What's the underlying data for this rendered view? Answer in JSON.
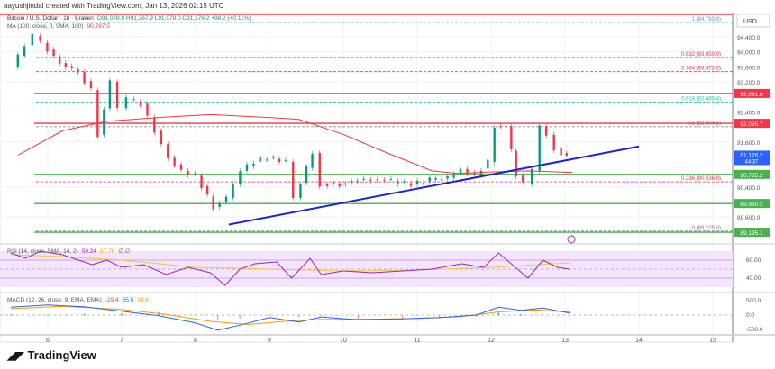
{
  "header": {
    "credit": "aayushjindal created with TradingView.com, Jan 13, 2026 02:15 UTC",
    "symbol": "Bitcoin / U.S. Dollar · 1h · Kraken",
    "ohlc": "O91,078.0 H91,267.9 L91,078.0 C91,176.2 +98.2 (+0.11%)",
    "ma": "MA (100, close, 0, SMA, 100)",
    "ma_value": "90,787.5"
  },
  "currency": "USD",
  "logo": "TradingView",
  "colors": {
    "up": "#089981",
    "down": "#f23645",
    "ma": "#f23645",
    "trend": "#1e22d6",
    "support": "#4caf50",
    "rsi": "#9c27b0",
    "macd": "#2962ff",
    "signal": "#ff9800"
  },
  "chart_data": {
    "type": "candlestick",
    "x_ticks": [
      "6",
      "7",
      "8",
      "9",
      "10",
      "11",
      "12",
      "13",
      "14",
      "15"
    ],
    "y_ticks": [
      "94,400.0",
      "94,000.0",
      "93,600.0",
      "93,200.0",
      "92,400.0",
      "91,600.0",
      "90,400.0",
      "89,600.0"
    ],
    "y_tick_values": [
      94400,
      94000,
      93600,
      93200,
      92400,
      91600,
      90400,
      89600
    ],
    "price": [
      [
        5.55,
        93600
      ],
      [
        5.73,
        94180
      ],
      [
        5.85,
        94420
      ],
      [
        6.04,
        94060
      ],
      [
        6.2,
        93700
      ],
      [
        6.45,
        93460
      ],
      [
        6.63,
        92980
      ],
      [
        6.72,
        91790
      ],
      [
        6.88,
        93200
      ],
      [
        7.0,
        92500
      ],
      [
        7.12,
        92740
      ],
      [
        7.3,
        92620
      ],
      [
        7.49,
        91900
      ],
      [
        7.67,
        91180
      ],
      [
        7.85,
        90830
      ],
      [
        8.04,
        90700
      ],
      [
        8.28,
        89870
      ],
      [
        8.46,
        90110
      ],
      [
        8.65,
        90830
      ],
      [
        8.83,
        91070
      ],
      [
        9.01,
        91190
      ],
      [
        9.26,
        91070
      ],
      [
        9.38,
        90110
      ],
      [
        9.62,
        91310
      ],
      [
        9.74,
        90470
      ],
      [
        9.99,
        90470
      ],
      [
        10.23,
        90590
      ],
      [
        10.6,
        90590
      ],
      [
        10.96,
        90470
      ],
      [
        11.21,
        90590
      ],
      [
        11.45,
        90640
      ],
      [
        11.63,
        90880
      ],
      [
        11.82,
        90710
      ],
      [
        12.0,
        91070
      ],
      [
        12.09,
        92020
      ],
      [
        12.24,
        92020
      ],
      [
        12.37,
        90710
      ],
      [
        12.49,
        90470
      ],
      [
        12.61,
        90830
      ],
      [
        12.7,
        92020
      ],
      [
        12.79,
        91790
      ],
      [
        12.91,
        91430
      ],
      [
        13.06,
        91176
      ]
    ],
    "ma100": [
      [
        5.6,
        91250
      ],
      [
        6.2,
        91900
      ],
      [
        6.8,
        92150
      ],
      [
        7.5,
        92250
      ],
      [
        8.2,
        92330
      ],
      [
        9.0,
        92250
      ],
      [
        9.4,
        92200
      ],
      [
        10.0,
        91800
      ],
      [
        10.6,
        91300
      ],
      [
        11.2,
        90830
      ],
      [
        11.55,
        90760
      ],
      [
        12.0,
        90800
      ],
      [
        12.5,
        90830
      ],
      [
        13.1,
        90787
      ]
    ],
    "trendline": [
      [
        8.45,
        89400
      ],
      [
        14.0,
        91480
      ]
    ],
    "levels": [
      {
        "value": 92891.8,
        "label": "92,891.8",
        "color": "#f23645"
      },
      {
        "value": 92095.7,
        "label": "92,095.7",
        "color": "#f23645"
      },
      {
        "value": 90735.2,
        "label": "90,735.2",
        "color": "#4caf50"
      },
      {
        "value": 89960.2,
        "label": "89,960.2",
        "color": "#4caf50"
      },
      {
        "value": 89195.1,
        "label": "89,195.1",
        "color": "#4caf50"
      }
    ],
    "fib": [
      {
        "label": "1 (94,783.9)",
        "value": 94783.9,
        "color": "#5b9bd5"
      },
      {
        "label": "0.832 (93,850.0)",
        "value": 93850,
        "color": "#f23645"
      },
      {
        "label": "0.764 (93,472.0)",
        "value": 93472,
        "color": "#f23645"
      },
      {
        "label": "0.618 (92,660.4)",
        "value": 92660.4,
        "color": "#26c6a0"
      },
      {
        "label": "0.5 (92,004.5)",
        "value": 92004.5,
        "color": "#787b86"
      },
      {
        "label": "0.236 (90,536.9)",
        "value": 90536.9,
        "color": "#f23645"
      },
      {
        "label": "0 (89,225.0)",
        "value": 89225,
        "color": "#787b86"
      }
    ],
    "last_price": "91,176.2",
    "countdown": "44:37",
    "rsi": {
      "label": "RSI (14, close, SMA, 14, 2)",
      "v1": "50.24",
      "v2": "57.76",
      "v3": "∅ ∅",
      "ticks": [
        "60.00",
        "40.00"
      ],
      "values": [
        [
          5.5,
          68
        ],
        [
          5.7,
          62
        ],
        [
          5.9,
          70
        ],
        [
          6.2,
          66
        ],
        [
          6.6,
          55
        ],
        [
          6.8,
          60
        ],
        [
          7.0,
          52
        ],
        [
          7.3,
          55
        ],
        [
          7.6,
          44
        ],
        [
          7.9,
          52
        ],
        [
          8.2,
          46
        ],
        [
          8.4,
          32
        ],
        [
          8.6,
          50
        ],
        [
          8.8,
          56
        ],
        [
          9.1,
          58
        ],
        [
          9.3,
          40
        ],
        [
          9.55,
          62
        ],
        [
          9.7,
          44
        ],
        [
          10.0,
          48
        ],
        [
          10.4,
          46
        ],
        [
          10.8,
          48
        ],
        [
          11.2,
          50
        ],
        [
          11.6,
          56
        ],
        [
          11.9,
          52
        ],
        [
          12.1,
          68
        ],
        [
          12.3,
          54
        ],
        [
          12.5,
          40
        ],
        [
          12.7,
          60
        ],
        [
          12.9,
          52
        ],
        [
          13.06,
          50
        ]
      ],
      "sma": [
        [
          5.5,
          66
        ],
        [
          6.2,
          64
        ],
        [
          7.0,
          60
        ],
        [
          8.0,
          52
        ],
        [
          9.0,
          50
        ],
        [
          10.0,
          48
        ],
        [
          11.0,
          49
        ],
        [
          12.0,
          52
        ],
        [
          13.06,
          57
        ]
      ]
    },
    "macd": {
      "label": "MACD (12, 26, close, 9, EMA, EMA)",
      "v1": "-29.4",
      "v2": "65.5",
      "v3": "94.8",
      "ticks": [
        "500.0",
        "0.0",
        "-500.0"
      ],
      "macd": [
        [
          5.5,
          250
        ],
        [
          6.0,
          320
        ],
        [
          6.5,
          260
        ],
        [
          7.0,
          120
        ],
        [
          7.5,
          -20
        ],
        [
          8.0,
          -250
        ],
        [
          8.3,
          -480
        ],
        [
          8.6,
          -320
        ],
        [
          9.0,
          -80
        ],
        [
          9.4,
          -220
        ],
        [
          9.7,
          -60
        ],
        [
          10.2,
          -150
        ],
        [
          10.8,
          -120
        ],
        [
          11.3,
          -80
        ],
        [
          11.8,
          0
        ],
        [
          12.1,
          250
        ],
        [
          12.4,
          150
        ],
        [
          12.7,
          220
        ],
        [
          13.06,
          65
        ]
      ],
      "signal": [
        [
          5.5,
          200
        ],
        [
          6.2,
          280
        ],
        [
          7.0,
          180
        ],
        [
          7.6,
          20
        ],
        [
          8.2,
          -200
        ],
        [
          8.7,
          -300
        ],
        [
          9.2,
          -200
        ],
        [
          9.7,
          -140
        ],
        [
          10.4,
          -130
        ],
        [
          11.0,
          -110
        ],
        [
          11.6,
          -50
        ],
        [
          12.1,
          100
        ],
        [
          12.6,
          160
        ],
        [
          13.06,
          95
        ]
      ]
    }
  }
}
